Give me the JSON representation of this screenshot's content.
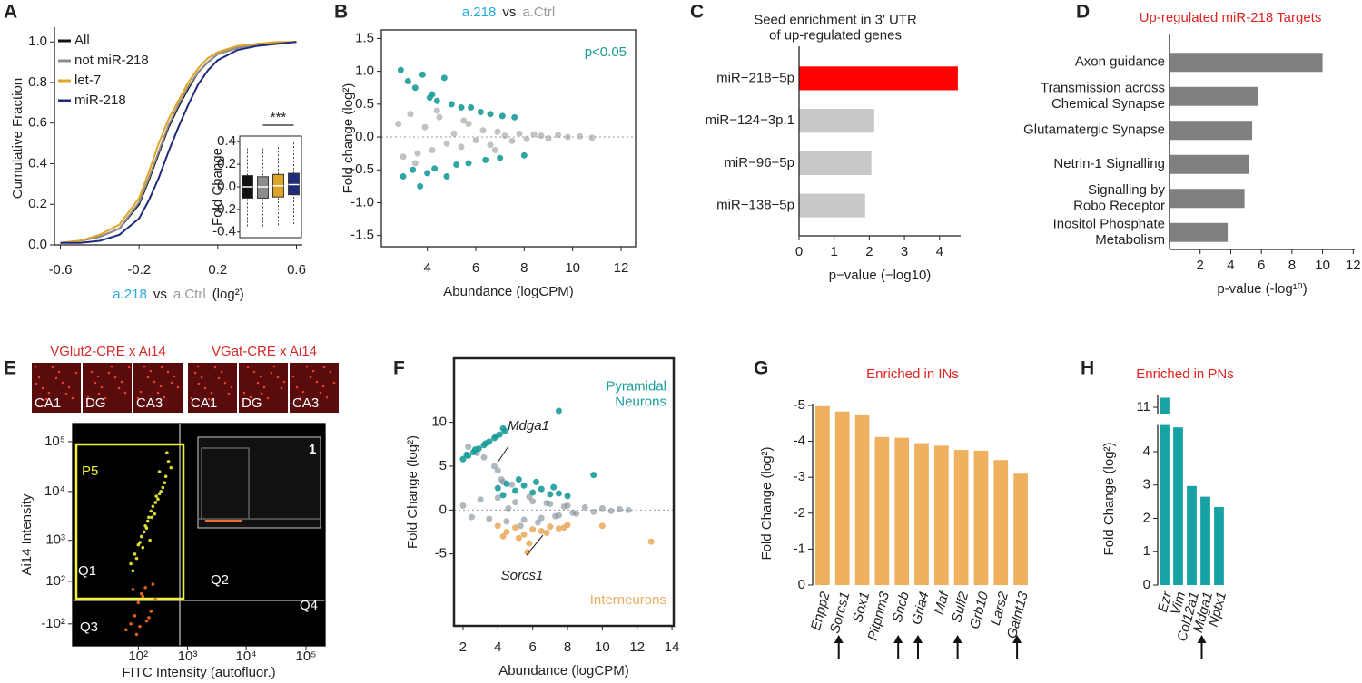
{
  "chart_data": [
    {
      "panel": "A",
      "type": "line",
      "ylabel": "Cumulative Fraction",
      "xlabel": [
        {
          "text": "a.218",
          "color": "#29abe2"
        },
        {
          "text": "vs",
          "color": "#222222"
        },
        {
          "text": "a.Ctrl",
          "color": "#999999"
        },
        {
          "text": "(log²)",
          "color": "#222222"
        }
      ],
      "x": [
        -0.6,
        -0.5,
        -0.4,
        -0.3,
        -0.2,
        -0.15,
        -0.1,
        -0.05,
        0,
        0.05,
        0.1,
        0.15,
        0.2,
        0.3,
        0.4,
        0.5,
        0.6
      ],
      "series": [
        {
          "name": "All",
          "color": "#111111",
          "values": [
            0.01,
            0.02,
            0.04,
            0.08,
            0.2,
            0.32,
            0.45,
            0.58,
            0.68,
            0.77,
            0.85,
            0.9,
            0.94,
            0.97,
            0.99,
            0.995,
            1
          ]
        },
        {
          "name": "not miR-218",
          "color": "#8c8c8c",
          "values": [
            0.01,
            0.02,
            0.04,
            0.08,
            0.21,
            0.33,
            0.46,
            0.59,
            0.69,
            0.78,
            0.85,
            0.9,
            0.94,
            0.97,
            0.99,
            0.995,
            1
          ]
        },
        {
          "name": "let-7",
          "color": "#e0a526",
          "values": [
            0.01,
            0.02,
            0.05,
            0.1,
            0.23,
            0.36,
            0.5,
            0.62,
            0.71,
            0.8,
            0.87,
            0.92,
            0.95,
            0.98,
            0.99,
            1,
            1
          ]
        },
        {
          "name": "miR-218",
          "color": "#1f2a7a",
          "values": [
            0.01,
            0.01,
            0.02,
            0.05,
            0.13,
            0.22,
            0.33,
            0.46,
            0.58,
            0.69,
            0.79,
            0.86,
            0.91,
            0.96,
            0.98,
            0.99,
            1
          ]
        }
      ],
      "xlim": [
        -0.63,
        0.63
      ],
      "xticks": [
        -0.6,
        -0.2,
        0.2,
        0.6
      ],
      "ylim": [
        0,
        1.05
      ],
      "yticks": [
        {
          "value": 0,
          "label": "0.0"
        },
        0.2,
        0.4,
        0.6,
        0.8,
        {
          "value": 1,
          "label": "1.0"
        }
      ],
      "legend": "top-left",
      "inset": {
        "ylabel": "Fold Change",
        "ylim": [
          -0.45,
          0.45
        ],
        "yticks": [
          0.4,
          0.2,
          {
            "value": 0,
            "label": "0.0"
          },
          -0.2,
          -0.4
        ],
        "boxes": [
          {
            "low": -0.35,
            "q1": -0.1,
            "median": 0,
            "q3": 0.1,
            "high": 0.35
          },
          {
            "low": -0.35,
            "q1": -0.1,
            "median": 0,
            "q3": 0.09,
            "high": 0.34
          },
          {
            "low": -0.34,
            "q1": -0.09,
            "median": 0.01,
            "q3": 0.11,
            "high": 0.36
          },
          {
            "low": -0.33,
            "q1": -0.07,
            "median": 0.02,
            "q3": 0.12,
            "high": 0.4
          }
        ],
        "annotation": "***"
      }
    },
    {
      "panel": "B",
      "type": "scatter",
      "title": [
        {
          "text": "a.218",
          "color": "#29abe2"
        },
        {
          "text": "vs",
          "color": "#222222"
        },
        {
          "text": "a.Ctrl",
          "color": "#999999"
        }
      ],
      "annotation": "p<0.05",
      "annotation_color": "#1a9c9a",
      "xlabel": "Abundance (logCPM)",
      "ylabel": "Fold change (log²)",
      "xlim": [
        2.1,
        12.6
      ],
      "xticks": [
        4,
        6,
        8,
        10,
        12
      ],
      "ylim": [
        -1.67,
        1.63
      ],
      "yticks": [
        1.5,
        {
          "value": 1,
          "label": "1.0"
        },
        0.5,
        {
          "value": 0,
          "label": "0.0"
        },
        -0.5,
        {
          "value": -1,
          "label": "-1.0"
        },
        -1.5
      ],
      "zero_line": true,
      "series": [
        {
          "color": "#9a9a9a",
          "x": [
            2.8,
            3.0,
            3.3,
            3.6,
            3.9,
            4.2,
            4.5,
            4.8,
            5.1,
            5.4,
            5.7,
            6.0,
            6.3,
            6.6,
            6.9,
            7.2,
            7.5,
            7.8,
            8.1,
            8.4,
            8.7,
            9.0,
            9.4,
            9.8,
            10.3,
            10.8,
            3.5,
            4.4,
            5.5,
            6.8
          ],
          "values": [
            0.2,
            -0.3,
            0.35,
            -0.25,
            0.15,
            -0.2,
            0.3,
            -0.1,
            0.05,
            -0.15,
            0.2,
            -0.05,
            0.1,
            -0.12,
            0.08,
            0.02,
            -0.06,
            0.05,
            -0.03,
            0.04,
            0.02,
            -0.02,
            0.03,
            0,
            0.01,
            -0.01,
            -0.4,
            0.4,
            0.25,
            -0.2
          ]
        },
        {
          "color": "#1a9c9a",
          "x": [
            2.9,
            3.2,
            3.5,
            3.8,
            4.1,
            4.4,
            4.7,
            5.0,
            5.4,
            5.8,
            6.2,
            6.6,
            7.1,
            7.6,
            3.0,
            3.4,
            3.7,
            4.0,
            4.3,
            4.8,
            5.2,
            5.7,
            6.4,
            7.0,
            8.0,
            4.2
          ],
          "values": [
            1.02,
            0.85,
            0.75,
            0.95,
            0.6,
            0.55,
            0.9,
            0.5,
            0.45,
            0.45,
            0.38,
            0.35,
            0.32,
            0.3,
            -0.6,
            -0.5,
            -0.75,
            -0.55,
            -0.48,
            -0.6,
            -0.42,
            -0.4,
            -0.35,
            -0.32,
            -0.28,
            0.65
          ]
        }
      ]
    },
    {
      "panel": "C",
      "type": "hbar",
      "title": "Seed enrichment in 3' UTR\nof up-regulated genes",
      "categories": [
        "miR−218−5p",
        "miR−124−3p.1",
        "miR−96−5p",
        "miR−138−5p"
      ],
      "values": [
        4.52,
        2.14,
        2.06,
        1.88
      ],
      "colors": [
        "#ff0000",
        "#c8c8c8",
        "#c8c8c8",
        "#c8c8c8"
      ],
      "xlim": [
        0,
        4.6
      ],
      "xticks": [
        0,
        1,
        2,
        3,
        4
      ],
      "xlabel": "p−value (−log10)"
    },
    {
      "panel": "D",
      "type": "hbar",
      "title": "Up-regulated miR-218 Targets",
      "title_color": "#e32322",
      "categories": [
        "Axon guidance",
        "Transmission across\nChemical Synapse",
        "Glutamatergic Synapse",
        "Netrin-1 Signalling",
        "Signalling by\nRobo Receptor",
        "Inositol Phosphate\nMetabolism"
      ],
      "values": [
        10.0,
        5.8,
        5.4,
        5.2,
        4.9,
        3.8
      ],
      "color": "#808080",
      "xlim": [
        0,
        12.1
      ],
      "xticks": [
        2,
        4,
        6,
        8,
        10,
        12
      ],
      "xlabel": "p-value (-log¹⁰)"
    },
    {
      "panel": "E",
      "type": "scatter",
      "scale": "symlog",
      "background": "#000000",
      "images": [
        {
          "title": "VGlut2-CRE x Ai14",
          "tiles": [
            "CA1",
            "DG",
            "CA3"
          ]
        },
        {
          "title": "VGat-CRE x Ai14",
          "tiles": [
            "CA1",
            "DG",
            "CA3"
          ]
        }
      ],
      "image_title_color": "#d42a2a",
      "gate_labels": [
        "P5",
        "Q1",
        "Q2",
        "Q3",
        "Q4",
        "1"
      ],
      "ylabel": "Ai14 Intensity",
      "xlabel": "FITC Intensity (autofluor.)",
      "xlim": [
        -220,
        208000
      ],
      "xticks": [
        {
          "value": 100,
          "label": "10²"
        },
        {
          "value": 1000,
          "label": "10³"
        },
        {
          "value": 10000,
          "label": "10⁴"
        },
        {
          "value": 100000,
          "label": "10⁵"
        }
      ],
      "ylim": [
        -380,
        230000
      ],
      "yticks": [
        {
          "value": -100,
          "label": "-10²"
        },
        {
          "value": 100,
          "label": "10²"
        },
        {
          "value": 1000,
          "label": "10³"
        },
        {
          "value": 10000,
          "label": "10⁴"
        },
        {
          "value": 100000,
          "label": "10⁵"
        }
      ],
      "series": [
        {
          "color": "#f2f23a",
          "x": [
            60,
            80,
            100,
            120,
            150,
            180,
            200,
            250,
            300,
            350,
            400,
            450,
            90,
            110,
            140,
            170,
            220,
            280,
            320,
            380,
            70,
            130,
            160,
            240,
            260,
            300,
            420,
            190,
            210,
            500
          ],
          "values": [
            300,
            500,
            800,
            1200,
            2000,
            3000,
            4000,
            6000,
            9000,
            12000,
            20000,
            40000,
            400,
            900,
            1500,
            2500,
            5000,
            7000,
            10000,
            15000,
            200,
            700,
            1800,
            3500,
            8000,
            25000,
            60000,
            1000,
            3000,
            30000
          ]
        },
        {
          "color": "#f06a28",
          "x": [
            40,
            60,
            80,
            100,
            130,
            160,
            200,
            250,
            70,
            110,
            150,
            90,
            120,
            180,
            220
          ],
          "values": [
            -150,
            -100,
            -50,
            0,
            20,
            -80,
            -30,
            10,
            50,
            -120,
            60,
            -200,
            30,
            -60,
            80
          ]
        }
      ]
    },
    {
      "panel": "F",
      "type": "scatter",
      "xlabel": "Abundance (logCPM)",
      "ylabel": "Fold Change (log²)",
      "xlim": [
        1.48,
        14.1
      ],
      "xticks": [
        2,
        4,
        6,
        8,
        10,
        12,
        14
      ],
      "ylim": [
        -13.2,
        17.3
      ],
      "yticks": [
        -5,
        0,
        5,
        10
      ],
      "zero_line": true,
      "annotations": [
        "Mdga1",
        "Sorcs1"
      ],
      "series": [
        {
          "color": "#7d8a95",
          "x": [
            2.0,
            2.5,
            3.0,
            3.5,
            4.0,
            4.5,
            5.0,
            5.5,
            6.0,
            6.5,
            7.0,
            7.5,
            8.0,
            8.5,
            9.0,
            9.5,
            10.0,
            10.5,
            11.0,
            11.5,
            4.2,
            4.8,
            5.3,
            5.8,
            6.3,
            6.8,
            7.3,
            7.8,
            8.3,
            3.8,
            4.0,
            4.3,
            4.6,
            2.3,
            2.8,
            3.2
          ],
          "values": [
            0.5,
            -0.8,
            1.2,
            -1.0,
            1.4,
            -1.3,
            0.9,
            -1.1,
            1.0,
            -0.9,
            0.7,
            -0.6,
            0.5,
            -0.4,
            0.3,
            -0.2,
            0.2,
            -0.1,
            0.1,
            0,
            3.5,
            2.9,
            -1.8,
            1.5,
            -1.4,
            0.8,
            -0.7,
            0.4,
            -0.3,
            5.0,
            4.5,
            3.2,
            0.2,
            7.2,
            6.5,
            6.0
          ]
        },
        {
          "name": "Pyramidal\nNeurons",
          "color": "#1a9c9a",
          "x": [
            2.0,
            2.3,
            2.6,
            2.9,
            3.2,
            3.5,
            3.8,
            4.1,
            4.4,
            2.2,
            2.7,
            3.3,
            3.9,
            4.3,
            4.0,
            4.5,
            5.0,
            5.5,
            6.0,
            6.5,
            7.0,
            7.5,
            4.3,
            5.2,
            6.2,
            7.2,
            8.0,
            9.5,
            7.5
          ],
          "values": [
            5.8,
            6.2,
            6.6,
            7.0,
            7.4,
            7.8,
            8.2,
            8.6,
            9.0,
            6.3,
            6.9,
            7.6,
            8.4,
            9.3,
            2.5,
            3.0,
            2.2,
            2.8,
            2.0,
            2.4,
            1.8,
            1.9,
            1.7,
            3.5,
            3.2,
            2.6,
            1.6,
            4.0,
            11.3
          ]
        },
        {
          "name": "Interneurons",
          "color": "#eaad62",
          "x": [
            4.0,
            4.5,
            5.0,
            5.5,
            6.0,
            6.5,
            7.0,
            7.5,
            8.0,
            4.3,
            5.2,
            5.8,
            6.8,
            7.8,
            5.7,
            12.8,
            10.0
          ],
          "values": [
            -1.8,
            -2.5,
            -2.0,
            -2.8,
            -2.2,
            -2.4,
            -1.9,
            -2.1,
            -1.7,
            -3.0,
            -3.2,
            -3.8,
            -2.6,
            -2.0,
            -4.8,
            -3.6,
            -1.8
          ]
        }
      ]
    },
    {
      "panel": "G",
      "type": "bar",
      "title": "Enriched in INs",
      "title_color": "#e32322",
      "ylabel": "Fold Change (log²)",
      "categories": [
        "Enpp2",
        "Sorcs1",
        "Sox1",
        "Pitpnm3",
        "Sncb",
        "Gria4",
        "Maf",
        "Sulf2",
        "Grb10",
        "Lars2",
        "Galnt13"
      ],
      "values": [
        -4.98,
        -4.83,
        -4.75,
        -4.12,
        -4.1,
        -3.95,
        -3.88,
        -3.76,
        -3.74,
        -3.48,
        -3.1
      ],
      "arrows": [
        false,
        true,
        false,
        false,
        true,
        true,
        false,
        true,
        false,
        false,
        true
      ],
      "color": "#efb15f",
      "ylim": [
        0,
        -5.05
      ],
      "yticks": [
        -5,
        -4,
        -3,
        -2,
        -1,
        0
      ]
    },
    {
      "panel": "H",
      "type": "bar",
      "title": "Enriched in PNs",
      "title_color": "#e32322",
      "ylabel": "Fold Change (log²)",
      "categories": [
        "Ezr",
        "Vim",
        "Col12a1",
        "Mdga1",
        "Nptx1"
      ],
      "values": [
        11.3,
        4.73,
        2.97,
        2.65,
        2.34
      ],
      "arrows": [
        false,
        false,
        false,
        true,
        false
      ],
      "color": "#17a2a4",
      "ylim": [
        0,
        11.4
      ],
      "ybreak": [
        4.8,
        10.8
      ],
      "yticks": [
        0,
        1,
        2,
        3,
        4,
        11
      ]
    }
  ]
}
